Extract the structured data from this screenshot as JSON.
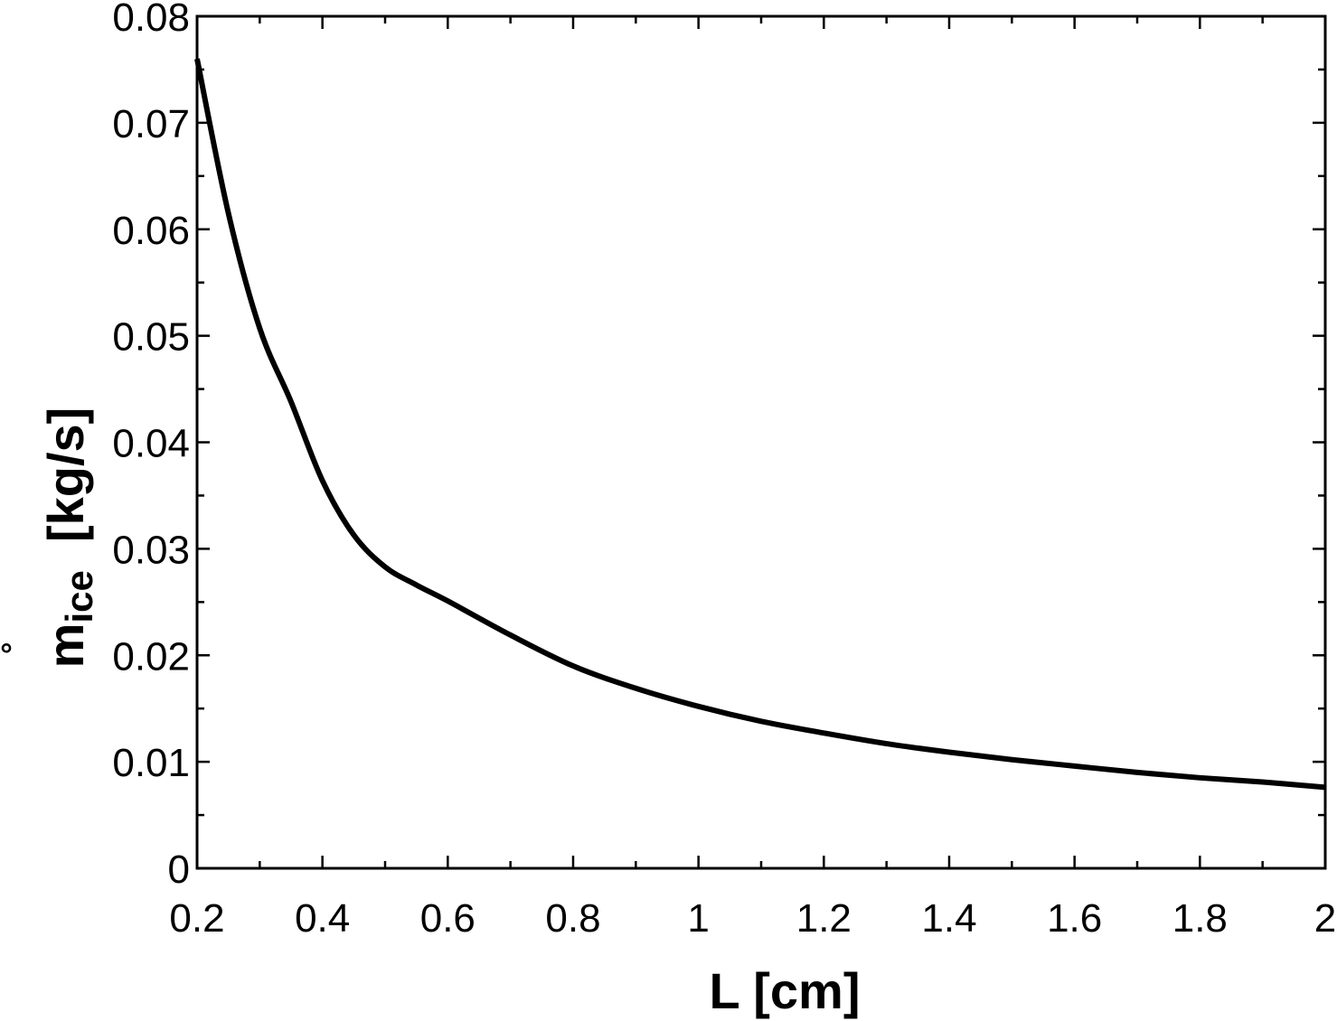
{
  "chart_data": {
    "type": "line",
    "title": "",
    "xlabel": "L  [cm]",
    "ylabel": {
      "main": "m",
      "subscript": "ice",
      "units": "[kg/s]",
      "accent_symbol": "°"
    },
    "xlim": [
      0.2,
      2
    ],
    "ylim": [
      0,
      0.08
    ],
    "xticks": [
      0.2,
      0.4,
      0.6,
      0.8,
      1,
      1.2,
      1.4,
      1.6,
      1.8,
      2
    ],
    "xtick_labels": [
      "0.2",
      "0.4",
      "0.6",
      "0.8",
      "1",
      "1.2",
      "1.4",
      "1.6",
      "1.8",
      "2"
    ],
    "yticks": [
      0,
      0.01,
      0.02,
      0.03,
      0.04,
      0.05,
      0.06,
      0.07,
      0.08
    ],
    "ytick_labels": [
      "0",
      "0.01",
      "0.02",
      "0.03",
      "0.04",
      "0.05",
      "0.06",
      "0.07",
      "0.08"
    ],
    "grid": false,
    "legend": "none",
    "series": [
      {
        "color": "#000000",
        "x": [
          0.2,
          0.25,
          0.3,
          0.35,
          0.4,
          0.45,
          0.5,
          0.55,
          0.6,
          0.7,
          0.8,
          0.9,
          1.0,
          1.1,
          1.2,
          1.3,
          1.4,
          1.5,
          1.6,
          1.7,
          1.8,
          1.9,
          2.0
        ],
        "y": [
          0.076,
          0.0615,
          0.0507,
          0.0438,
          0.0364,
          0.0313,
          0.0283,
          0.0266,
          0.0251,
          0.0219,
          0.019,
          0.0169,
          0.0152,
          0.0138,
          0.0127,
          0.0117,
          0.0109,
          0.0102,
          0.0096,
          0.009,
          0.0085,
          0.0081,
          0.0076
        ]
      }
    ]
  }
}
